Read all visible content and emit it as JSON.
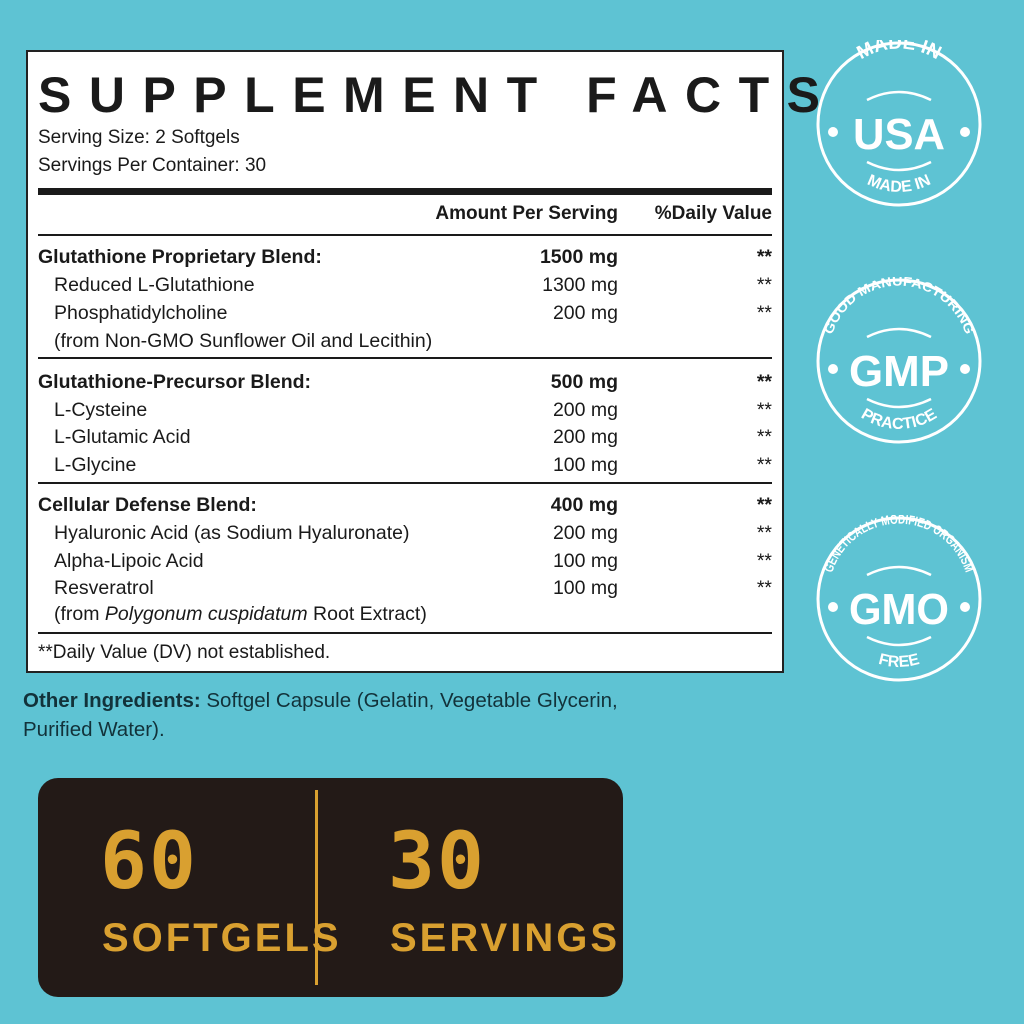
{
  "panel": {
    "title": "SUPPLEMENT FACTS",
    "serving_size": "Serving Size: 2 Softgels",
    "servings_per_container": "Servings Per Container: 30",
    "header_amount": "Amount Per Serving",
    "header_dv": "%Daily Value",
    "rows": [
      {
        "name": "Glutathione Proprietary Blend:",
        "amount": "1500 mg",
        "dv": "**",
        "bold": true
      },
      {
        "name": "Reduced L-Glutathione",
        "amount": "1300 mg",
        "dv": "**"
      },
      {
        "name": "Phosphatidylcholine",
        "amount": "200 mg",
        "dv": "**"
      },
      {
        "name": "(from Non-GMO Sunflower Oil and Lecithin)",
        "amount": "",
        "dv": ""
      },
      {
        "name": "Glutathione-Precursor Blend:",
        "amount": "500 mg",
        "dv": "**",
        "bold": true
      },
      {
        "name": "L-Cysteine",
        "amount": "200 mg",
        "dv": "**"
      },
      {
        "name": "L-Glutamic Acid",
        "amount": "200 mg",
        "dv": "**"
      },
      {
        "name": "L-Glycine",
        "amount": "100 mg",
        "dv": "**"
      },
      {
        "name": "Cellular Defense Blend:",
        "amount": "400 mg",
        "dv": "**",
        "bold": true
      },
      {
        "name": "Hyaluronic Acid (as Sodium Hyaluronate)",
        "amount": "200 mg",
        "dv": "**"
      },
      {
        "name": "Alpha-Lipoic Acid",
        "amount": "100 mg",
        "dv": "**"
      },
      {
        "name": "Resveratrol",
        "amount": "100 mg",
        "dv": "**"
      }
    ],
    "resveratrol_source_pre": "(from ",
    "resveratrol_source_italic": "Polygonum cuspidatum",
    "resveratrol_source_post": " Root Extract)",
    "footnote": "**Daily Value (DV) not established."
  },
  "other": {
    "label": "Other Ingredients:",
    "text": " Softgel Capsule (Gelatin, Vegetable Glycerin, Purified Water)."
  },
  "bottom": {
    "count1": "60",
    "label1": "SOFTGELS",
    "count2": "30",
    "label2": "SERVINGS"
  },
  "badges": [
    {
      "top": "MADE IN",
      "center": "USA",
      "bottom": "MADE IN"
    },
    {
      "top": "GOOD MANUFACTURING",
      "center": "GMP",
      "bottom": "PRACTICE"
    },
    {
      "top": "GENETICALLY MODIFIED ORGANISM",
      "center": "GMO",
      "bottom": "FREE"
    }
  ],
  "colors": {
    "background": "#5ec3d3",
    "dark": "#231a17",
    "gold": "#d9a030"
  }
}
